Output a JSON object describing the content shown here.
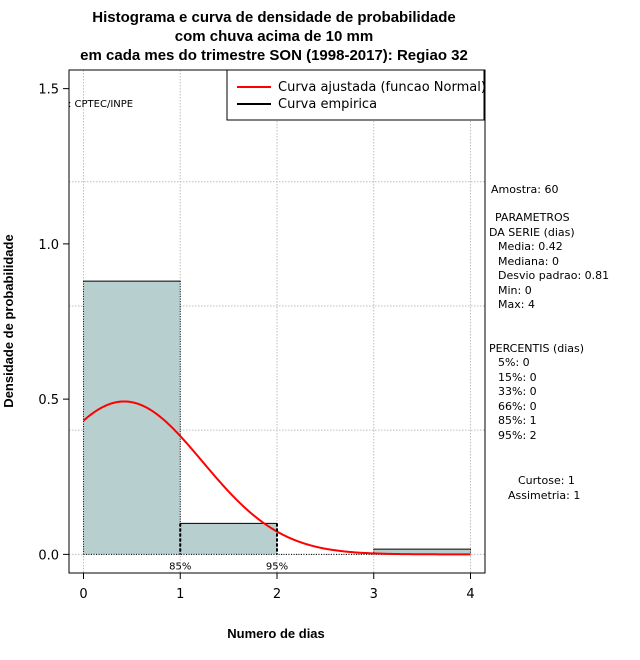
{
  "chart_data": {
    "type": "histogram",
    "title_lines": [
      "Histograma e curva de densidade de probabilidade",
      "com chuva acima de 10 mm",
      "em cada mes do trimestre SON (1998-2017): Regiao 32"
    ],
    "xlabel": "Numero de dias",
    "ylabel": "Densidade de probabilidade",
    "xlim": [
      -0.15,
      4.15
    ],
    "ylim": [
      -0.06,
      1.56
    ],
    "x_ticks": [
      0,
      1,
      2,
      3,
      4
    ],
    "y_ticks": [
      0.0,
      0.5,
      1.0,
      1.5
    ],
    "y_tick_labels": [
      "0.0",
      "0.5",
      "1.0",
      "1.5"
    ],
    "grid": true,
    "bars": [
      {
        "x0": 0,
        "x1": 1,
        "density": 0.88
      },
      {
        "x0": 1,
        "x1": 2,
        "density": 0.1
      },
      {
        "x0": 2,
        "x1": 3,
        "density": 0.0
      },
      {
        "x0": 3,
        "x1": 4,
        "density": 0.017
      }
    ],
    "bar_fill": "#b7cfcf",
    "normal_curve": {
      "mean": 0.42,
      "sd": 0.81,
      "color": "#ff0000"
    },
    "percentile_markers": [
      {
        "x": 1,
        "label": "85%"
      },
      {
        "x": 2,
        "label": "95%"
      }
    ],
    "legend": {
      "placement": "top-right",
      "entries": [
        {
          "label": "Curva ajustada (funcao Normal)",
          "color": "#ff0000"
        },
        {
          "label": "Curva empirica",
          "color": "#000000"
        }
      ]
    },
    "source_label": ": CPTEC/INPE"
  },
  "side_panel": {
    "amostra": "Amostra: 60",
    "param_title_1": "PARAMETROS",
    "param_title_2": "DA SERIE (dias)",
    "media": "Media: 0.42",
    "mediana": "Mediana: 0",
    "desvio": "Desvio padrao: 0.81",
    "min": "Min: 0",
    "max": "Max: 4",
    "perc_title": "PERCENTIS (dias)",
    "p5": "5%: 0",
    "p15": "15%: 0",
    "p33": "33%: 0",
    "p66": "66%: 0",
    "p85": "85%: 1",
    "p95": "95%: 2",
    "curtose": "Curtose: 1",
    "assimetria": "Assimetria: 1"
  }
}
